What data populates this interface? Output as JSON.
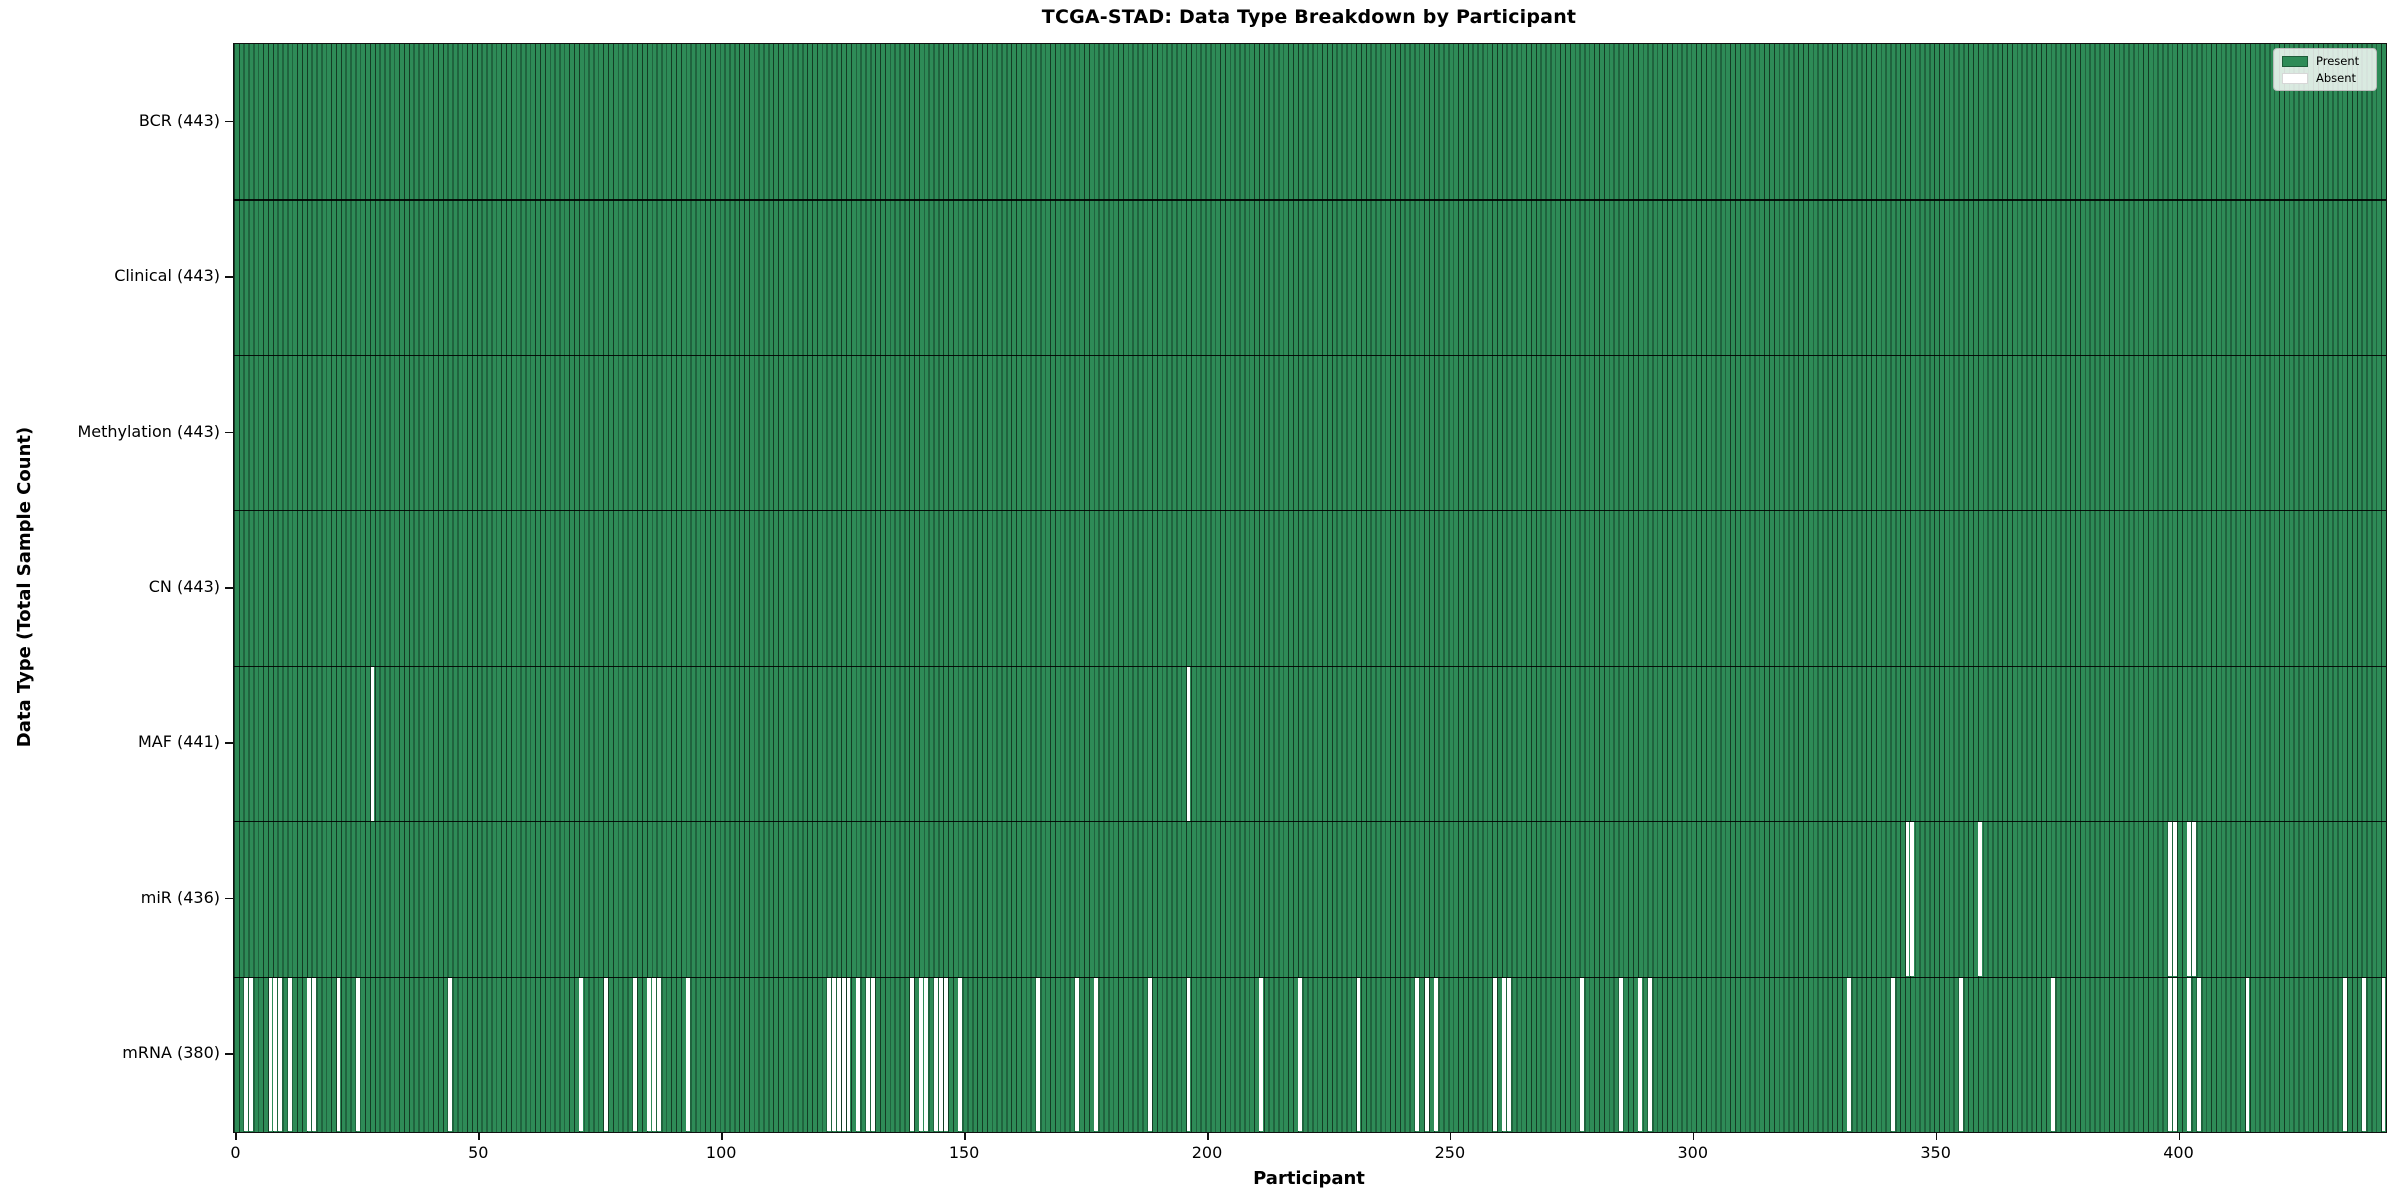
{
  "chart_data": {
    "type": "heatmap",
    "title": "TCGA-STAD: Data Type Breakdown by Participant",
    "xlabel": "Participant",
    "ylabel": "Data Type (Total Sample Count)",
    "n_participants": 443,
    "x_ticks": [
      0,
      50,
      100,
      150,
      200,
      250,
      300,
      350,
      400
    ],
    "grid": "row-dividers-only",
    "legend_position": "upper-right",
    "legend": [
      {
        "label": "Present",
        "color": "#2e8b57"
      },
      {
        "label": "Absent",
        "color": "#ffffff"
      }
    ],
    "colors": {
      "present": "#2e8b57",
      "absent": "#ffffff",
      "bar_edge": "#14361f",
      "axis": "#111111"
    },
    "rows": [
      {
        "label": "BCR (443)",
        "name": "BCR",
        "present_count": 443,
        "absent_participants": []
      },
      {
        "label": "Clinical (443)",
        "name": "Clinical",
        "present_count": 443,
        "absent_participants": []
      },
      {
        "label": "Methylation (443)",
        "name": "Methylation",
        "present_count": 443,
        "absent_participants": []
      },
      {
        "label": "CN (443)",
        "name": "CN",
        "present_count": 443,
        "absent_participants": []
      },
      {
        "label": "MAF (441)",
        "name": "MAF",
        "present_count": 441,
        "absent_participants": [
          28,
          196
        ]
      },
      {
        "label": "miR (436)",
        "name": "miR",
        "present_count": 436,
        "absent_participants": [
          344,
          345,
          359,
          398,
          399,
          402,
          403
        ]
      },
      {
        "label": "mRNA (380)",
        "name": "mRNA",
        "present_count": 380,
        "absent_participants": [
          2,
          3,
          7,
          8,
          9,
          11,
          15,
          16,
          21,
          25,
          44,
          71,
          76,
          82,
          85,
          86,
          87,
          93,
          122,
          123,
          124,
          125,
          126,
          128,
          130,
          131,
          139,
          141,
          142,
          144,
          145,
          146,
          149,
          165,
          173,
          177,
          188,
          196,
          211,
          219,
          231,
          243,
          245,
          247,
          259,
          261,
          262,
          277,
          285,
          289,
          291,
          332,
          341,
          355,
          374,
          398,
          399,
          402,
          404,
          414,
          434,
          438,
          442
        ]
      }
    ]
  }
}
